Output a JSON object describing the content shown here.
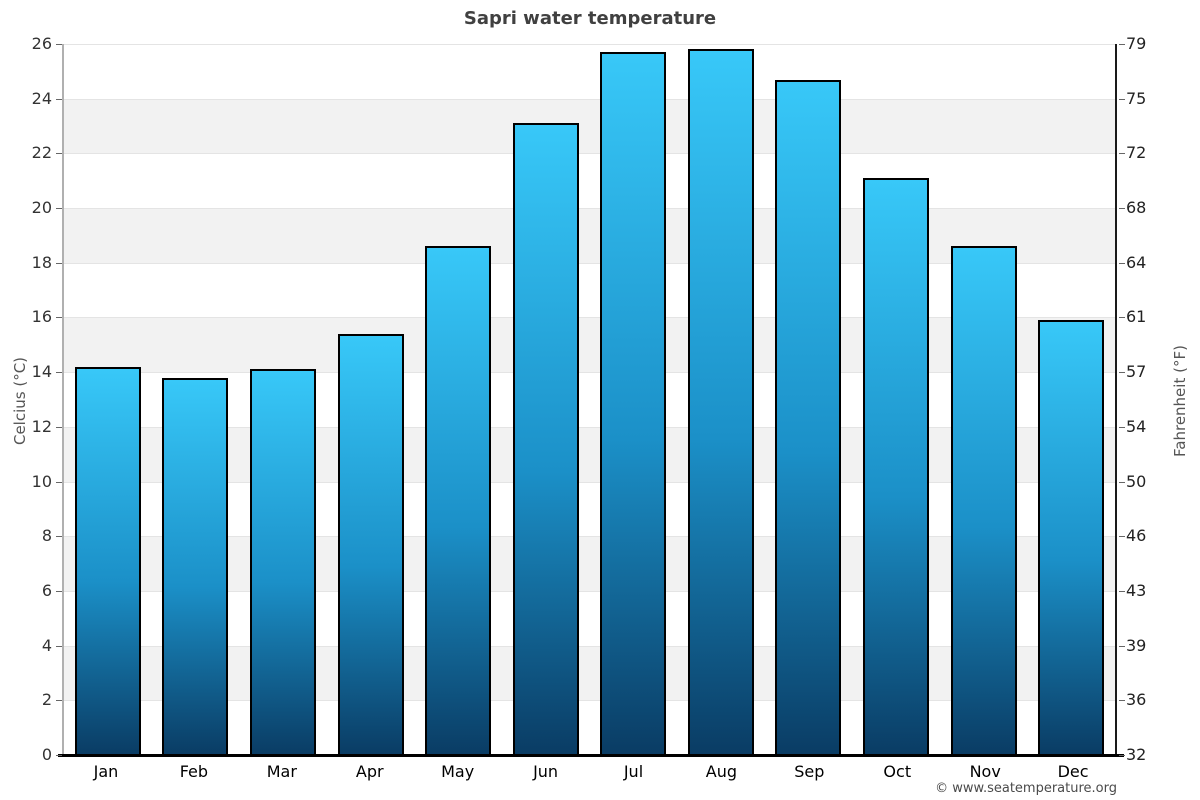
{
  "header": {
    "title": "Sapri water temperature"
  },
  "footer": {
    "copyright": "© www.seatemperature.org"
  },
  "chart_data": {
    "type": "bar",
    "title": "Sapri water temperature",
    "categories": [
      "Jan",
      "Feb",
      "Mar",
      "Apr",
      "May",
      "Jun",
      "Jul",
      "Aug",
      "Sep",
      "Oct",
      "Nov",
      "Dec"
    ],
    "values": [
      14.2,
      13.8,
      14.1,
      15.4,
      18.6,
      23.1,
      25.7,
      25.8,
      24.7,
      21.1,
      18.6,
      15.9
    ],
    "units": "°C",
    "ylabel_left": "Celcius (°C)",
    "ylabel_right": "Fahrenheit (°F)",
    "ylim_celsius": [
      0,
      26
    ],
    "yticks_celsius": [
      0,
      2,
      4,
      6,
      8,
      10,
      12,
      14,
      16,
      18,
      20,
      22,
      24,
      26
    ],
    "yticks_fahrenheit": [
      32,
      36,
      39,
      43,
      46,
      50,
      54,
      57,
      61,
      64,
      68,
      72,
      75,
      79
    ],
    "grid": true,
    "legend": false,
    "band_color_shaded": "#f2f2f2",
    "band_color_plain": "#ffffff",
    "bar_gradient_top": "#38c8f8",
    "bar_gradient_bottom": "#0a3c64",
    "bar_border_color": "#000000"
  }
}
